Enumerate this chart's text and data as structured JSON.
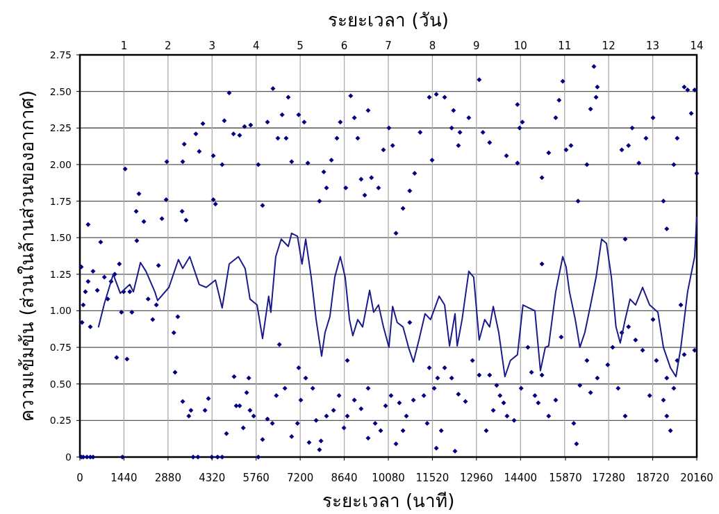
{
  "chart_data": {
    "type": "scatter",
    "xlabel": "ระยะเวลา (นาที)",
    "x2label": "ระยะเวลา (วัน)",
    "ylabel": "ความเข้มข้น (ส่วนในล้านส่วนของอากาศ)",
    "xlim": [
      0,
      20160
    ],
    "xticks": [
      0,
      1440,
      2880,
      4320,
      5760,
      7200,
      8640,
      10080,
      11520,
      12960,
      14400,
      15870,
      17280,
      18720,
      20160
    ],
    "x2lim": [
      0,
      14
    ],
    "x2ticks": [
      1,
      2,
      3,
      4,
      5,
      6,
      7,
      8,
      9,
      10,
      11,
      12,
      13,
      14
    ],
    "ylim": [
      0,
      2.75
    ],
    "yticks": [
      0,
      0.25,
      {
        "value": 0.5,
        "label": "0.50"
      },
      0.75,
      {
        "value": 1,
        "label": "1.00"
      },
      1.25,
      {
        "value": 1.5,
        "label": "1.50"
      },
      1.75,
      {
        "value": 2,
        "label": "2.00"
      },
      2.25,
      {
        "value": 2.5,
        "label": "2.50"
      },
      2.75
    ],
    "grid": true,
    "series": [
      {
        "marker": "diamond",
        "color": "#000080",
        "x": [
          45,
          110,
          230,
          340,
          430,
          45,
          70,
          110,
          180,
          270,
          340,
          430,
          570,
          680,
          800,
          910,
          1020,
          1140,
          1200,
          1290,
          1360,
          1430,
          270,
          1390,
          1480,
          1540,
          1630,
          1700,
          1840,
          1930,
          1860,
          2090,
          2230,
          2380,
          2500,
          2570,
          2820,
          2840,
          2680,
          3110,
          3360,
          3340,
          3470,
          3410,
          3360,
          3560,
          3630,
          3790,
          3900,
          4020,
          3070,
          3200,
          4090,
          4200,
          3700,
          3860,
          4360,
          4360,
          4430,
          4650,
          4880,
          4720,
          5020,
          5220,
          5380,
          5580,
          4790,
          5040,
          5220,
          5450,
          5560,
          5680,
          4310,
          4500,
          4650,
          5110,
          5340,
          5520,
          5830,
          5970,
          6130,
          6310,
          6470,
          6610,
          6740,
          6920,
          6810,
          5970,
          6130,
          6290,
          6420,
          6520,
          6700,
          6920,
          7110,
          7150,
          5830,
          7150,
          7330,
          7450,
          7830,
          7970,
          8060,
          8220,
          8400,
          8510,
          8690,
          7220,
          7380,
          7610,
          7720,
          7880,
          8060,
          8290,
          8470,
          8630,
          7490,
          7830,
          8850,
          8970,
          9080,
          9190,
          9310,
          9420,
          9530,
          9760,
          9920,
          10100,
          8740,
          8970,
          9190,
          9420,
          9650,
          9830,
          9990,
          8740,
          9420,
          10220,
          10330,
          10560,
          10780,
          10940,
          11120,
          11420,
          11510,
          11650,
          10170,
          10440,
          10670,
          10900,
          11240,
          11420,
          11580,
          10330,
          10560,
          11350,
          10780,
          11920,
          12150,
          12210,
          12370,
          12420,
          12710,
          13050,
          11690,
          11920,
          12150,
          12370,
          12600,
          12830,
          13050,
          11810,
          12260,
          11650,
          13170,
          13390,
          13940,
          14300,
          14370,
          14460,
          14300,
          13280,
          13510,
          13730,
          13960,
          14190,
          14420,
          14640,
          13390,
          13620,
          13850,
          15100,
          15320,
          15550,
          15660,
          15780,
          15890,
          15100,
          14760,
          14980,
          15100,
          15320,
          15550,
          14870,
          15730,
          16050,
          16280,
          16570,
          16690,
          16870,
          16910,
          16800,
          16140,
          16340,
          16570,
          16910,
          17250,
          17410,
          16230,
          16690,
          17710,
          17930,
          18050,
          18270,
          18500,
          18730,
          17820,
          17710,
          17930,
          18160,
          18390,
          18620,
          18840,
          17590,
          17820,
          18730,
          19070,
          19180,
          19410,
          19520,
          19750,
          19860,
          19980,
          20090,
          20160,
          19070,
          19180,
          19410,
          19300,
          19520,
          19750,
          20090,
          19180,
          19640
        ],
        "values": [
          0,
          0,
          0,
          0,
          0,
          1.3,
          0.92,
          1.04,
          1.13,
          1.2,
          0.89,
          1.27,
          1.14,
          1.47,
          1.23,
          1.08,
          1.2,
          1.25,
          0.68,
          1.32,
          0.99,
          1.13,
          1.59,
          0,
          1.97,
          0.67,
          1.13,
          0.99,
          1.68,
          1.8,
          1.48,
          1.61,
          1.08,
          0.94,
          1.04,
          1.31,
          1.76,
          2.02,
          1.63,
          0.58,
          2.02,
          1.68,
          1.62,
          2.14,
          0.38,
          0.28,
          0.32,
          2.21,
          2.09,
          2.28,
          0.85,
          0.96,
          0.32,
          0.4,
          0,
          0,
          2.06,
          1.76,
          1.73,
          2.0,
          2.49,
          2.3,
          2.21,
          2.2,
          2.26,
          2.27,
          0.16,
          0.55,
          0.35,
          0.44,
          0.32,
          0.28,
          0,
          0,
          0,
          0.35,
          0.2,
          0.54,
          2.0,
          1.72,
          2.29,
          2.52,
          2.18,
          2.34,
          2.18,
          2.02,
          2.46,
          0.12,
          0.26,
          0.23,
          0.42,
          0.77,
          0.47,
          0.14,
          0.23,
          0.61,
          0,
          2.34,
          2.29,
          2.01,
          1.75,
          1.95,
          1.84,
          2.03,
          2.18,
          2.29,
          1.84,
          0.39,
          0.54,
          0.47,
          0.25,
          0.11,
          0.28,
          0.32,
          0.42,
          0.2,
          0.1,
          0.05,
          2.47,
          2.32,
          2.18,
          1.9,
          1.79,
          2.37,
          1.91,
          1.84,
          2.1,
          2.25,
          0.28,
          0.39,
          0.33,
          0.47,
          0.23,
          0.18,
          0.35,
          0.66,
          0.13,
          2.13,
          1.53,
          1.7,
          1.82,
          1.94,
          2.22,
          2.46,
          2.03,
          2.48,
          0.42,
          0.37,
          0.28,
          0.39,
          0.42,
          0.61,
          0.47,
          0.09,
          0.18,
          0.23,
          0.92,
          2.46,
          2.25,
          2.37,
          2.13,
          2.22,
          2.32,
          2.58,
          0.54,
          0.61,
          0.54,
          0.43,
          0.38,
          0.66,
          0.56,
          0.18,
          0.04,
          0.06,
          2.22,
          2.15,
          2.06,
          2.01,
          2.25,
          2.29,
          2.41,
          0.18,
          0.32,
          0.42,
          0.28,
          0.25,
          0.47,
          0.75,
          0.56,
          0.49,
          0.37,
          1.91,
          2.08,
          2.32,
          2.44,
          2.57,
          2.1,
          1.32,
          0.58,
          0.37,
          0.56,
          0.28,
          0.39,
          0.42,
          0.82,
          2.13,
          1.75,
          2.0,
          2.38,
          2.46,
          2.53,
          2.67,
          0.23,
          0.49,
          0.66,
          0.54,
          0.63,
          0.75,
          0.09,
          0.44,
          2.1,
          2.13,
          2.25,
          2.01,
          2.18,
          2.32,
          1.49,
          0.85,
          0.89,
          0.8,
          0.73,
          0.42,
          0.66,
          0.47,
          0.28,
          0.94,
          1.75,
          1.56,
          2.0,
          2.18,
          2.53,
          2.51,
          2.35,
          2.51,
          1.94,
          0.39,
          0.28,
          0.47,
          0.18,
          0.66,
          0.7,
          0.73,
          0.54,
          1.04
        ]
      },
      {
        "type": "line",
        "marker": "none",
        "color": "#1a1a8c",
        "x": [
          610,
          800,
          1090,
          1320,
          1630,
          1750,
          1980,
          2160,
          2450,
          2540,
          2910,
          3220,
          3360,
          3590,
          3900,
          4130,
          4430,
          4650,
          4880,
          5180,
          5400,
          5560,
          5790,
          5970,
          6170,
          6240,
          6400,
          6580,
          6810,
          6920,
          7110,
          7260,
          7380,
          7560,
          7720,
          7900,
          8010,
          8170,
          8330,
          8510,
          8670,
          8810,
          8920,
          9080,
          9240,
          9470,
          9600,
          9760,
          9920,
          10100,
          10220,
          10370,
          10560,
          10740,
          10900,
          11080,
          11280,
          11460,
          11740,
          11920,
          12080,
          12260,
          12330,
          12490,
          12710,
          12870,
          13050,
          13230,
          13390,
          13510,
          13690,
          13890,
          14070,
          14300,
          14480,
          14870,
          15050,
          15210,
          15320,
          15550,
          15780,
          15890,
          16000,
          16190,
          16340,
          16500,
          16690,
          16870,
          17050,
          17210,
          17370,
          17520,
          17660,
          17820,
          17980,
          18160,
          18390,
          18620,
          18890,
          19070,
          19300,
          19480,
          19640,
          19860,
          20090,
          20160
        ],
        "values": [
          0.89,
          1.05,
          1.25,
          1.12,
          1.18,
          1.13,
          1.33,
          1.27,
          1.13,
          1.07,
          1.16,
          1.35,
          1.29,
          1.37,
          1.18,
          1.16,
          1.21,
          1.02,
          1.32,
          1.37,
          1.29,
          1.08,
          1.04,
          0.81,
          1.1,
          0.99,
          1.37,
          1.49,
          1.44,
          1.53,
          1.51,
          1.32,
          1.49,
          1.23,
          0.94,
          0.69,
          0.85,
          0.96,
          1.23,
          1.37,
          1.23,
          0.94,
          0.83,
          0.94,
          0.89,
          1.14,
          0.99,
          1.04,
          0.89,
          0.75,
          1.03,
          0.92,
          0.89,
          0.75,
          0.65,
          0.8,
          0.98,
          0.94,
          1.1,
          1.04,
          0.76,
          0.98,
          0.76,
          0.94,
          1.27,
          1.23,
          0.8,
          0.94,
          0.89,
          1.03,
          0.85,
          0.55,
          0.66,
          0.7,
          1.04,
          1.0,
          0.59,
          0.75,
          0.76,
          1.13,
          1.37,
          1.3,
          1.13,
          0.94,
          0.75,
          0.85,
          1.04,
          1.23,
          1.49,
          1.46,
          1.23,
          0.89,
          0.78,
          0.94,
          1.08,
          1.04,
          1.16,
          1.04,
          0.99,
          0.75,
          0.61,
          0.55,
          0.75,
          1.13,
          1.37,
          1.64
        ]
      }
    ]
  }
}
